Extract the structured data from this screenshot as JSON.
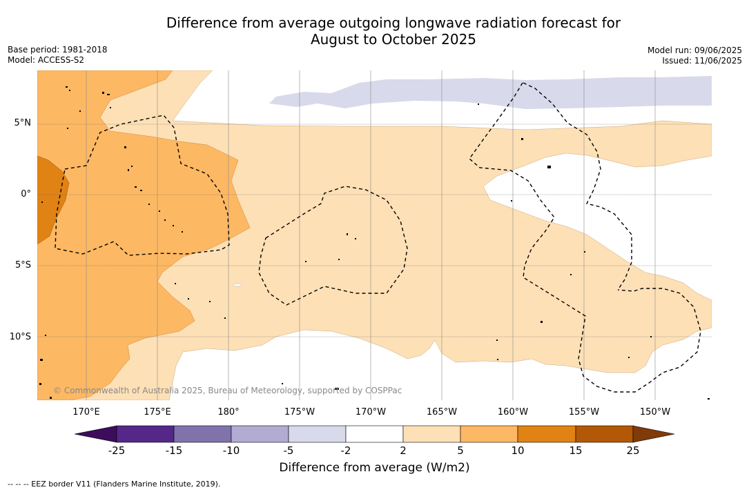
{
  "title": "Difference from average outgoing longwave radiation forecast for August to October 2025",
  "title_line1": "Difference from average outgoing longwave radiation forecast for",
  "title_line2": "August to October 2025",
  "base_period": "Base period: 1981-2018",
  "model": "Model: ACCESS-S2",
  "model_run": "Model run: 09/06/2025",
  "issued": "Issued: 11/06/2025",
  "copyright": "© Commonwealth of Australia 2025, Bureau of Meteorology, supported by COSPPac",
  "footnote": "--  --  -- EEZ border V11 (Flanders Marine Institute, 2019).",
  "map": {
    "latitudes": [
      "5°N",
      "0°",
      "5°S",
      "10°S"
    ],
    "longitudes": [
      "170°E",
      "175°E",
      "180°",
      "175°W",
      "170°W",
      "165°W",
      "160°W",
      "155°W",
      "150°W"
    ]
  },
  "colorbar": {
    "title": "Difference from average (W/m2)",
    "ticks": [
      "-25",
      "-15",
      "-10",
      "-5",
      "-2",
      "2",
      "5",
      "10",
      "15",
      "25"
    ],
    "colors": {
      "lt_-25": "#3d0d5c",
      "-25_-15": "#542788",
      "-15_-10": "#8073ac",
      "-10_-5": "#b2abd2",
      "-5_-2": "#d8daeb",
      "-2_2": "#ffffff",
      "2_5": "#fee0b6",
      "5_10": "#fdb863",
      "10_15": "#e08214",
      "15_25": "#b35806",
      "gt_25": "#7f3b08"
    }
  }
}
